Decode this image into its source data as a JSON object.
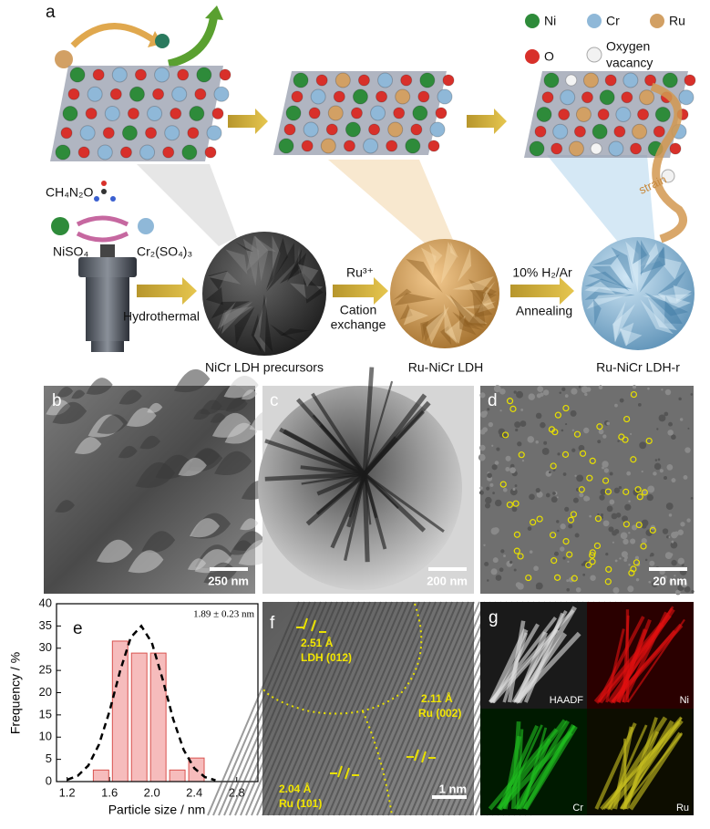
{
  "panel_a": {
    "label": "a",
    "legend": {
      "ni": "Ni",
      "cr": "Cr",
      "ru": "Ru",
      "o": "O",
      "oxygen_vacancy": [
        "Oxygen",
        "vacancy"
      ]
    },
    "reagents": {
      "urea": "CH₄N₂O",
      "ni_salt": "NiSO₄",
      "cr_salt": "Cr₂(SO₄)₃"
    },
    "steps": {
      "hydrothermal": "Hydrothermal",
      "ru_ion": "Ru³⁺",
      "cation_exchange": [
        "Cation",
        "exchange"
      ],
      "gas": "10% H₂/Ar",
      "annealing": "Annealing",
      "strain": "strain"
    },
    "products": [
      "NiCr LDH precursors",
      "Ru-NiCr LDH",
      "Ru-NiCr LDH-r"
    ]
  },
  "panel_b": {
    "label": "b",
    "scale_bar": "250 nm"
  },
  "panel_c": {
    "label": "c",
    "scale_bar": "200 nm"
  },
  "panel_d": {
    "label": "d",
    "scale_bar": "20 nm"
  },
  "panel_f": {
    "label": "f",
    "spacings": [
      {
        "d": "2.51 Å",
        "plane": "LDH (012)"
      },
      {
        "d": "2.11 Å",
        "plane": "Ru (002)"
      },
      {
        "d": "2.04 Å",
        "plane": "Ru (101)"
      }
    ],
    "scale_bar": "1 nm"
  },
  "panel_g": {
    "label": "g",
    "maps": [
      "HAADF",
      "Ni",
      "Cr",
      "Ru"
    ]
  },
  "chart_data": {
    "type": "histogram",
    "panel_label": "e",
    "annotation": "1.89 ± 0.23 nm",
    "xlabel": "Particle size / nm",
    "ylabel": "Frequency / %",
    "bins": [
      1.43,
      1.61,
      1.79,
      1.97,
      2.15,
      2.33,
      2.51
    ],
    "values": [
      2.6,
      31.6,
      28.9,
      28.9,
      2.6,
      5.3
    ],
    "color": "#f6bcbc",
    "edge_color": "#d9534f",
    "fit": {
      "x": [
        1.2,
        1.3,
        1.4,
        1.5,
        1.6,
        1.7,
        1.8,
        1.9,
        2.0,
        2.1,
        2.2,
        2.3,
        2.4,
        2.5,
        2.6
      ],
      "y": [
        0.4,
        1.3,
        3.6,
        8.3,
        15.8,
        24.9,
        32.4,
        35.0,
        31.2,
        23.1,
        14.1,
        7.1,
        3.0,
        1.0,
        0.3
      ],
      "color": "#000000"
    },
    "xlim": [
      1.1,
      3.0
    ],
    "ylim": [
      0,
      40
    ],
    "xticks": [
      1.2,
      1.6,
      {
        "value": 2,
        "label": "2.0"
      },
      2.4,
      2.8
    ],
    "yticks": [
      0,
      5,
      10,
      15,
      20,
      25,
      30,
      35,
      40
    ]
  }
}
